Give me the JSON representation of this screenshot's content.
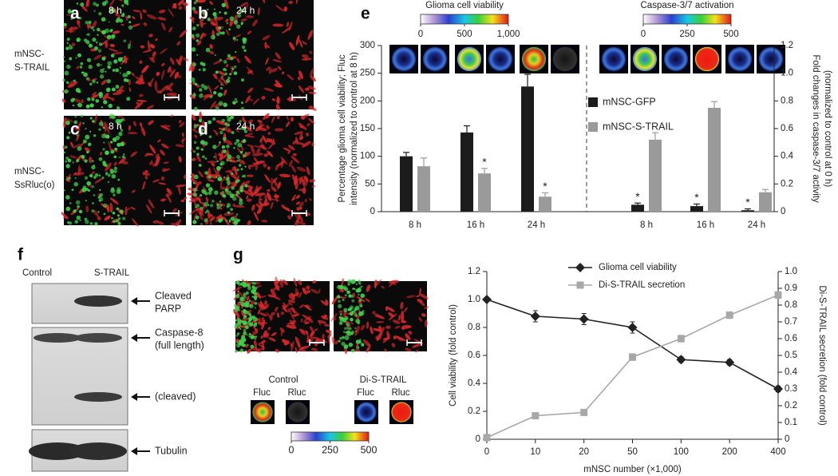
{
  "micrographs": [
    {
      "label": "a",
      "time": "8 h"
    },
    {
      "label": "b",
      "time": "24 h"
    },
    {
      "label": "c",
      "time": "8 h"
    },
    {
      "label": "d",
      "time": "24 h"
    }
  ],
  "row_labels": [
    [
      "mNSC-",
      "S-TRAIL"
    ],
    [
      "mNSC-",
      "SsRluc(o)"
    ]
  ],
  "panel_e_label": "e",
  "colorbars": [
    {
      "title": "Glioma cell viability",
      "range": [
        0,
        1000
      ],
      "ticks": [
        0,
        500,
        {
          "value": 1000,
          "label": "1,000"
        }
      ]
    },
    {
      "title": "Caspase-3/7 activation",
      "range": [
        0,
        500
      ],
      "ticks": [
        0,
        250,
        500
      ]
    }
  ],
  "panel_f": {
    "label": "f",
    "lanes": [
      "Control",
      "S-TRAIL"
    ],
    "bands": [
      [
        "Cleaved",
        "PARP"
      ],
      [
        "Caspase-8",
        "(full length)"
      ],
      [
        "(cleaved)"
      ],
      [
        "Tubulin"
      ]
    ]
  },
  "panel_g": {
    "label": "g",
    "groups": [
      {
        "name": "Control",
        "channels": [
          "Fluc",
          "Rluc"
        ]
      },
      {
        "name": "Di-S-TRAIL",
        "channels": [
          "Fluc",
          "Rluc"
        ]
      }
    ],
    "colorbar": {
      "range": [
        0,
        500
      ],
      "ticks": [
        0,
        250,
        500
      ]
    }
  },
  "chart_data": [
    {
      "type": "bar",
      "y_label": [
        "Percentage glioma cell viability; Fluc",
        "intensity (normalized to control at 8 h)"
      ],
      "y2_label": [
        "Fold changes in caspase-3/7 activity",
        "(normalized to control at 0 h)"
      ],
      "categories": [
        "8 h",
        "16 h",
        "24 h"
      ],
      "ylim": [
        0,
        300
      ],
      "yticks": [
        0,
        50,
        100,
        150,
        200,
        250,
        300
      ],
      "y2lim": [
        0,
        1.2
      ],
      "y2ticks": [
        0,
        0.2,
        0.4,
        0.6,
        0.8,
        {
          "value": 1,
          "label": "1.0"
        },
        1.2
      ],
      "annotation": "*",
      "series": [
        {
          "name": "mNSC-GFP",
          "color": "#1c1c1c",
          "values": [
            100,
            143,
            226
          ],
          "errors": [
            7,
            12,
            22
          ],
          "starred": [
            false,
            false,
            false
          ],
          "y2_values": [
            0.05,
            0.04,
            0.01
          ],
          "y2_errors": [
            0.012,
            0.015,
            0.01
          ],
          "y2_starred": [
            true,
            true,
            true
          ]
        },
        {
          "name": "mNSC-S-TRAIL",
          "color": "#9a9a9a",
          "values": [
            82,
            69,
            27
          ],
          "errors": [
            15,
            9,
            7
          ],
          "starred": [
            false,
            true,
            true
          ],
          "y2_values": [
            0.52,
            0.75,
            0.14
          ],
          "y2_errors": [
            0.05,
            0.045,
            0.02
          ],
          "y2_starred": [
            false,
            false,
            false
          ]
        }
      ]
    },
    {
      "type": "line",
      "x_label": "mNSC number (×1,000)",
      "y_label": "Cell viability (fold control)",
      "y2_label": "Di-S-TRAIL secretion (fold control)",
      "categories": [
        "0",
        "10",
        "20",
        "50",
        "100",
        "200",
        "400"
      ],
      "ylim": [
        0,
        1.2
      ],
      "yticks": [
        0,
        0.2,
        0.4,
        0.6,
        0.8,
        {
          "value": 1,
          "label": "1.0"
        },
        1.2
      ],
      "y2lim": [
        0,
        1
      ],
      "y2ticks": [
        0,
        0.1,
        0.2,
        0.3,
        0.4,
        0.5,
        0.6,
        0.7,
        0.8,
        0.9,
        {
          "value": 1,
          "label": "1.0"
        }
      ],
      "series": [
        {
          "name": "Glioma cell viability",
          "color": "#222222",
          "marker": "diamond",
          "values": [
            1.0,
            0.88,
            0.86,
            0.8,
            0.57,
            0.55,
            0.36
          ],
          "errors": [
            0.01,
            0.04,
            0.04,
            0.04,
            0.02,
            0.02,
            0.02
          ]
        },
        {
          "name": "Di-S-TRAIL secretion",
          "color": "#a8a8a8",
          "marker": "square",
          "axis": "y2",
          "values": [
            0.01,
            0.14,
            0.16,
            0.49,
            0.6,
            0.74,
            0.86
          ],
          "errors": [
            0.01,
            0.01,
            0.01,
            0.02,
            0.02,
            0.02,
            0.02
          ]
        }
      ]
    }
  ]
}
